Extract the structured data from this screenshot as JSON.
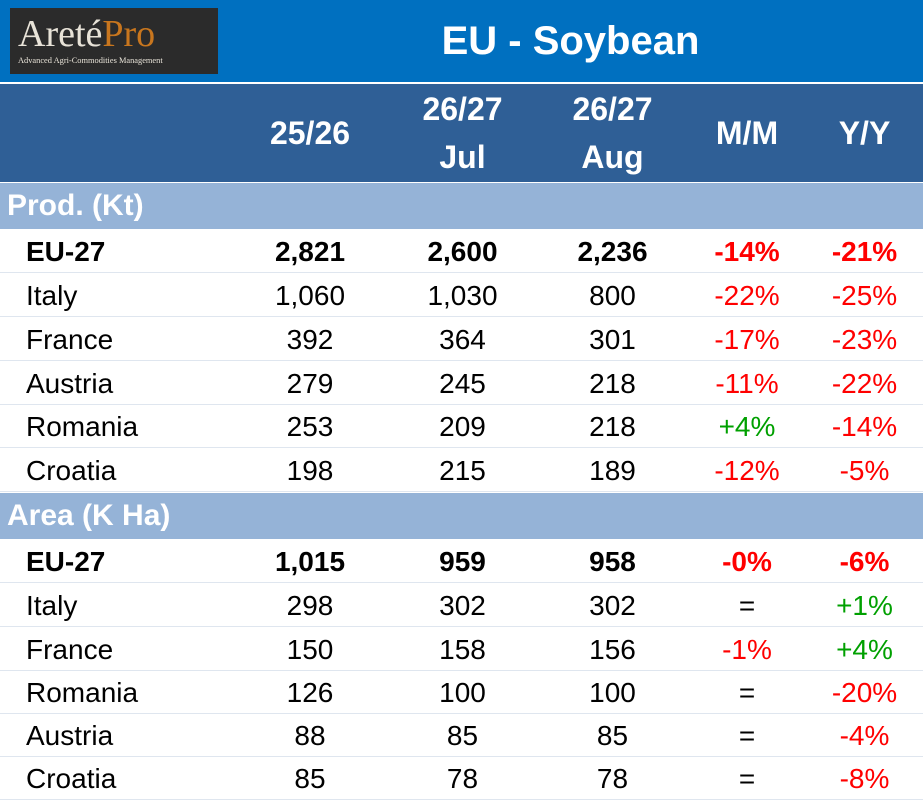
{
  "logo": {
    "word_main": "Areté",
    "word_accent": "Pro",
    "tagline": "Advanced Agri-Commodities Management"
  },
  "title": "EU - Soybean",
  "columns": [
    {
      "line1": "25/26",
      "line2": ""
    },
    {
      "line1": "26/27",
      "line2": "Jul"
    },
    {
      "line1": "26/27",
      "line2": "Aug"
    },
    {
      "line1": "M/M",
      "line2": ""
    },
    {
      "line1": "Y/Y",
      "line2": ""
    }
  ],
  "sections": [
    {
      "label": "Prod. (Kt)",
      "rows": [
        {
          "name": "EU-27",
          "bold": true,
          "v1": "2,821",
          "v2": "2,600",
          "v3": "2,236",
          "mm": "-14%",
          "yy": "-21%"
        },
        {
          "name": "Italy",
          "bold": false,
          "v1": "1,060",
          "v2": "1,030",
          "v3": "800",
          "mm": "-22%",
          "yy": "-25%"
        },
        {
          "name": "France",
          "bold": false,
          "v1": "392",
          "v2": "364",
          "v3": "301",
          "mm": "-17%",
          "yy": "-23%"
        },
        {
          "name": "Austria",
          "bold": false,
          "v1": "279",
          "v2": "245",
          "v3": "218",
          "mm": "-11%",
          "yy": "-22%"
        },
        {
          "name": "Romania",
          "bold": false,
          "v1": "253",
          "v2": "209",
          "v3": "218",
          "mm": "+4%",
          "yy": "-14%"
        },
        {
          "name": "Croatia",
          "bold": false,
          "v1": "198",
          "v2": "215",
          "v3": "189",
          "mm": "-12%",
          "yy": "-5%"
        }
      ]
    },
    {
      "label": "Area (K Ha)",
      "rows": [
        {
          "name": "EU-27",
          "bold": true,
          "v1": "1,015",
          "v2": "959",
          "v3": "958",
          "mm": "-0%",
          "yy": "-6%"
        },
        {
          "name": "Italy",
          "bold": false,
          "v1": "298",
          "v2": "302",
          "v3": "302",
          "mm": "=",
          "yy": "+1%"
        },
        {
          "name": "France",
          "bold": false,
          "v1": "150",
          "v2": "158",
          "v3": "156",
          "mm": "-1%",
          "yy": "+4%"
        },
        {
          "name": "Romania",
          "bold": false,
          "v1": "126",
          "v2": "100",
          "v3": "100",
          "mm": "=",
          "yy": "-20%"
        },
        {
          "name": "Austria",
          "bold": false,
          "v1": "88",
          "v2": "85",
          "v3": "85",
          "mm": "=",
          "yy": "-4%"
        },
        {
          "name": "Croatia",
          "bold": false,
          "v1": "85",
          "v2": "78",
          "v3": "78",
          "mm": "=",
          "yy": "-8%"
        }
      ]
    }
  ],
  "colors": {
    "title_bar": "#0070c0",
    "header_bg": "#2f5f96",
    "section_bg": "#95b3d7",
    "negative": "#ff0000",
    "positive": "#00a000"
  }
}
